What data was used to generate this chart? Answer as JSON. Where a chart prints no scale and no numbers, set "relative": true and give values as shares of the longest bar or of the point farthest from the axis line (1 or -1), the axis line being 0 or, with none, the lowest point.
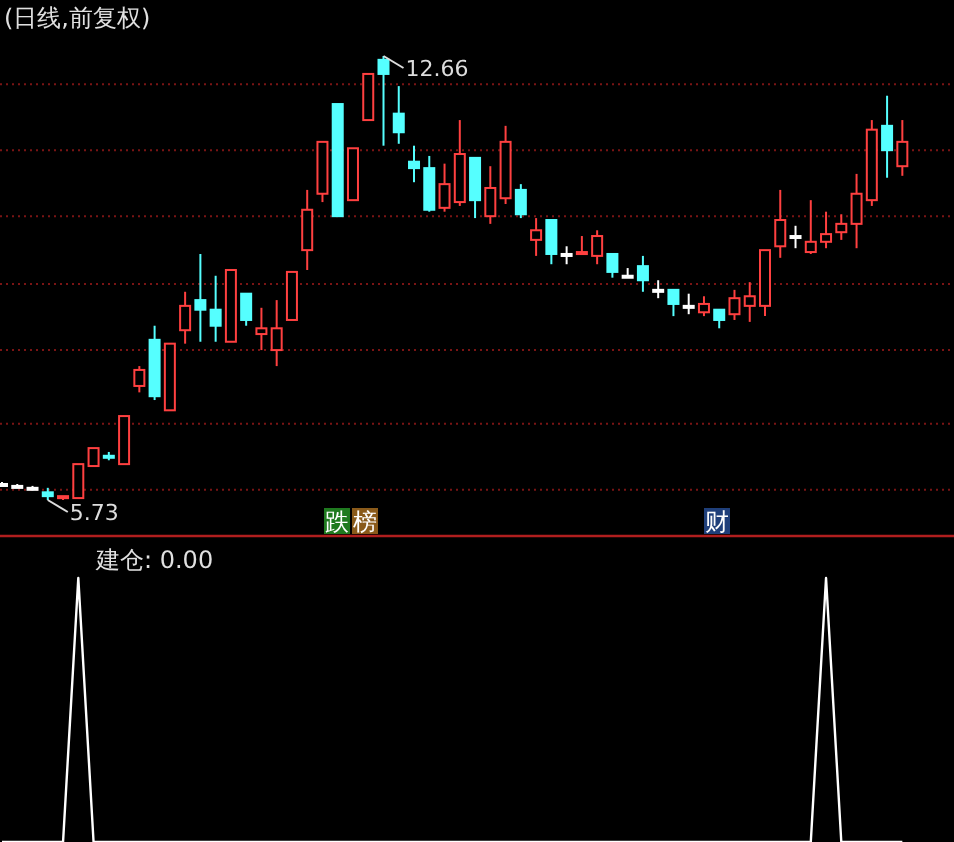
{
  "chart_data": [
    {
      "type": "candlestick",
      "title": "(日线,前复权)",
      "categories": [
        null,
        null,
        null,
        null,
        null,
        null,
        null,
        null,
        null,
        null,
        null,
        null,
        null,
        null,
        null,
        null,
        null,
        null,
        null,
        null,
        null,
        null,
        null,
        null,
        null,
        null,
        null,
        null,
        null,
        null,
        null,
        null,
        null,
        null,
        null,
        null,
        null,
        null,
        null,
        null,
        null,
        null,
        null,
        null,
        null,
        null,
        null,
        null,
        null,
        null,
        null,
        null,
        null,
        null,
        null,
        null,
        null,
        null,
        null,
        null
      ],
      "ohlc": [
        [
          5.98,
          6.01,
          5.95,
          5.98
        ],
        [
          5.95,
          5.98,
          5.92,
          5.95
        ],
        [
          5.92,
          5.95,
          5.88,
          5.92
        ],
        [
          5.85,
          5.92,
          5.73,
          5.79
        ],
        [
          5.76,
          5.79,
          5.73,
          5.79
        ],
        [
          5.76,
          6.29,
          5.76,
          6.29
        ],
        [
          6.26,
          6.54,
          6.26,
          6.54
        ],
        [
          6.42,
          6.48,
          6.35,
          6.42
        ],
        [
          6.29,
          7.04,
          6.29,
          7.04
        ],
        [
          7.51,
          7.82,
          7.41,
          7.76
        ],
        [
          8.23,
          8.45,
          7.29,
          7.35
        ],
        [
          7.13,
          8.17,
          7.13,
          8.17
        ],
        [
          8.38,
          8.98,
          8.17,
          8.76
        ],
        [
          8.85,
          9.57,
          8.2,
          8.7
        ],
        [
          8.7,
          9.23,
          8.2,
          8.45
        ],
        [
          8.2,
          9.32,
          8.2,
          9.32
        ],
        [
          8.95,
          8.95,
          8.45,
          8.54
        ],
        [
          8.32,
          8.73,
          8.07,
          8.41
        ],
        [
          8.07,
          8.85,
          7.82,
          8.41
        ],
        [
          8.54,
          9.29,
          8.54,
          9.29
        ],
        [
          9.63,
          10.57,
          9.32,
          10.26
        ],
        [
          10.51,
          11.32,
          10.38,
          11.32
        ],
        [
          11.91,
          11.91,
          10.16,
          10.16
        ],
        [
          10.41,
          11.22,
          10.41,
          11.22
        ],
        [
          11.66,
          12.38,
          11.66,
          12.38
        ],
        [
          12.6,
          12.66,
          11.26,
          12.38
        ],
        [
          11.76,
          12.19,
          11.29,
          11.47
        ],
        [
          11.01,
          11.26,
          10.69,
          10.91
        ],
        [
          10.91,
          11.1,
          10.23,
          10.26
        ],
        [
          10.29,
          10.98,
          10.23,
          10.66
        ],
        [
          10.38,
          11.66,
          10.32,
          11.13
        ],
        [
          11.07,
          11.07,
          10.13,
          10.41
        ],
        [
          10.16,
          10.94,
          10.04,
          10.6
        ],
        [
          10.44,
          11.57,
          10.35,
          11.32
        ],
        [
          10.57,
          10.66,
          10.13,
          10.19
        ],
        [
          9.79,
          10.13,
          9.54,
          9.94
        ],
        [
          10.1,
          10.1,
          9.41,
          9.57
        ],
        [
          9.57,
          9.69,
          9.41,
          9.57
        ],
        [
          9.6,
          9.85,
          9.57,
          9.6
        ],
        [
          9.54,
          9.94,
          9.41,
          9.85
        ],
        [
          9.57,
          9.57,
          9.2,
          9.29
        ],
        [
          9.23,
          9.35,
          9.2,
          9.23
        ],
        [
          9.38,
          9.54,
          8.98,
          9.16
        ],
        [
          9.01,
          9.16,
          8.88,
          9.01
        ],
        [
          9.01,
          9.01,
          8.6,
          8.79
        ],
        [
          8.76,
          8.95,
          8.63,
          8.76
        ],
        [
          8.66,
          8.91,
          8.6,
          8.79
        ],
        [
          8.7,
          8.7,
          8.41,
          8.54
        ],
        [
          8.63,
          9.01,
          8.54,
          8.88
        ],
        [
          8.76,
          9.13,
          8.51,
          8.91
        ],
        [
          8.76,
          9.63,
          8.6,
          9.63
        ],
        [
          9.69,
          10.57,
          9.51,
          10.1
        ],
        [
          9.85,
          10.01,
          9.66,
          9.85
        ],
        [
          9.6,
          10.41,
          9.57,
          9.76
        ],
        [
          9.76,
          10.23,
          9.66,
          9.88
        ],
        [
          9.91,
          10.19,
          9.79,
          10.04
        ],
        [
          10.04,
          10.82,
          9.66,
          10.51
        ],
        [
          10.41,
          11.66,
          10.32,
          11.51
        ],
        [
          11.57,
          12.04,
          10.76,
          11.19
        ],
        [
          10.94,
          11.66,
          10.79,
          11.32
        ]
      ],
      "colors": [
        "#ffffff",
        "#ffffff",
        "#ffffff",
        "#55ffff",
        "#ff4040",
        "#ff4040",
        "#ff4040",
        "#55ffff",
        "#ff4040",
        "#ff4040",
        "#55ffff",
        "#ff4040",
        "#ff4040",
        "#55ffff",
        "#55ffff",
        "#ff4040",
        "#55ffff",
        "#ff4040",
        "#ff4040",
        "#ff4040",
        "#ff4040",
        "#ff4040",
        "#55ffff",
        "#ff4040",
        "#ff4040",
        "#55ffff",
        "#55ffff",
        "#55ffff",
        "#55ffff",
        "#ff4040",
        "#ff4040",
        "#55ffff",
        "#ff4040",
        "#ff4040",
        "#55ffff",
        "#ff4040",
        "#55ffff",
        "#ffffff",
        "#ff4040",
        "#ff4040",
        "#55ffff",
        "#ffffff",
        "#55ffff",
        "#ffffff",
        "#55ffff",
        "#ffffff",
        "#ff4040",
        "#55ffff",
        "#ff4040",
        "#ff4040",
        "#ff4040",
        "#ff4040",
        "#ffffff",
        "#ff4040",
        "#ff4040",
        "#ff4040",
        "#ff4040",
        "#ff4040",
        "#55ffff",
        "#ff4040"
      ],
      "yticks": [
        {
          "value": 12.22,
          "label": null
        },
        {
          "value": 11.19,
          "label": null
        },
        {
          "value": 10.16,
          "label": null
        },
        {
          "value": 9.1,
          "label": null
        },
        {
          "value": 8.07,
          "label": null
        },
        {
          "value": 6.92,
          "label": null
        },
        {
          "value": 5.89,
          "label": null
        }
      ],
      "grid": "y",
      "annotations": [
        "12.66",
        "5.73",
        "跌",
        "榜",
        "财"
      ]
    },
    {
      "type": "line",
      "title": "建仓: 0.00",
      "relative": true,
      "categories": [
        null,
        null,
        null,
        null,
        null,
        null,
        null,
        null,
        null,
        null,
        null,
        null,
        null,
        null,
        null,
        null,
        null,
        null,
        null,
        null,
        null,
        null,
        null,
        null,
        null,
        null,
        null,
        null,
        null,
        null,
        null,
        null,
        null,
        null,
        null,
        null,
        null,
        null,
        null,
        null,
        null,
        null,
        null,
        null,
        null,
        null,
        null,
        null,
        null,
        null,
        null,
        null,
        null,
        null,
        null,
        null,
        null,
        null,
        null,
        null
      ],
      "series": [
        {
          "color": "#ffffff",
          "values": [
            0,
            0,
            0,
            0,
            0,
            1,
            0,
            0,
            0,
            0,
            0,
            0,
            0,
            0,
            0,
            0,
            0,
            0,
            0,
            0,
            0,
            0,
            0,
            0,
            0,
            0,
            0,
            0,
            0,
            0,
            0,
            0,
            0,
            0,
            0,
            0,
            0,
            0,
            0,
            0,
            0,
            0,
            0,
            0,
            0,
            0,
            0,
            0,
            0,
            0,
            0,
            0,
            0,
            0,
            1,
            0,
            0,
            0,
            0,
            0
          ]
        }
      ]
    }
  ]
}
